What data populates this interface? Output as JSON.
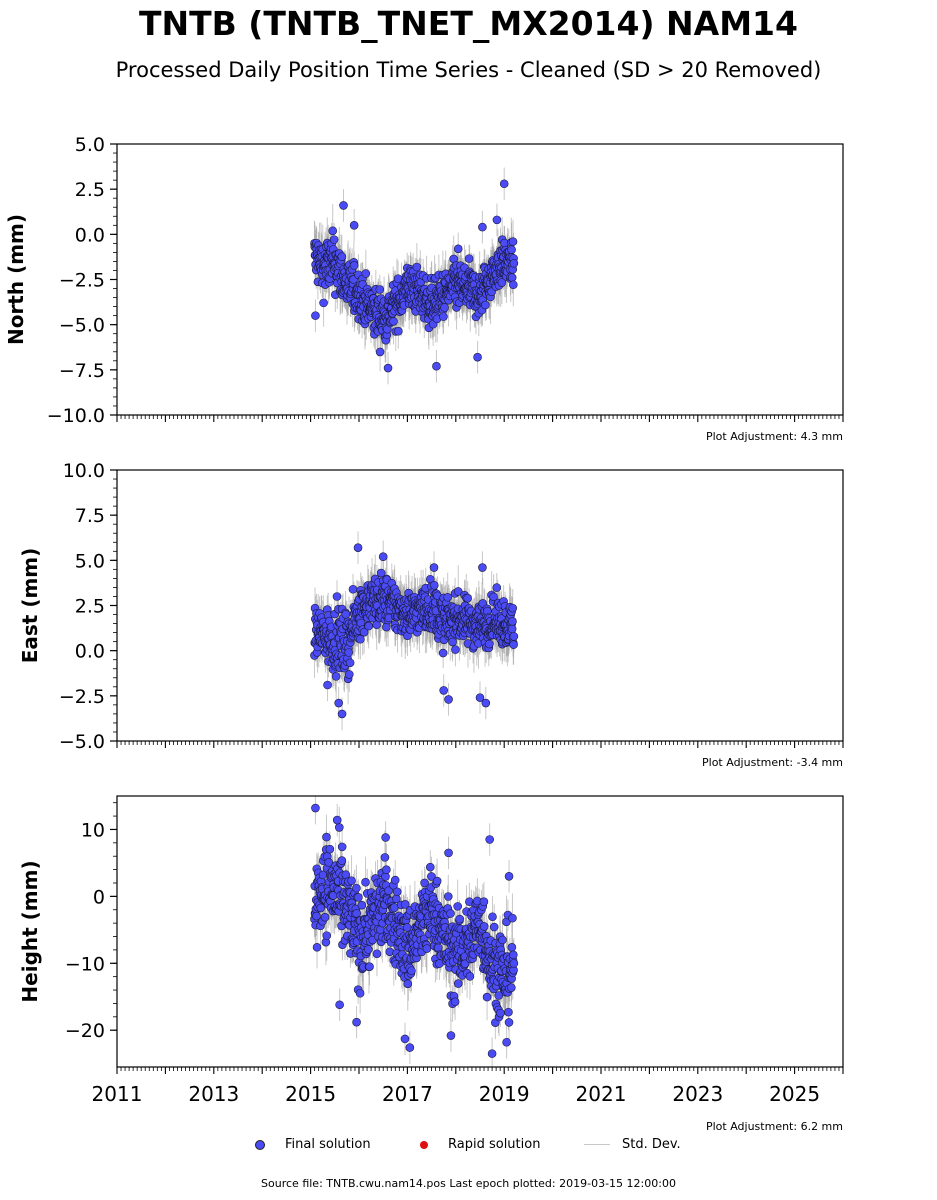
{
  "title": "TNTB (TNTB_TNET_MX2014) NAM14",
  "subtitle": "Processed Daily Position Time Series - Cleaned (SD > 20 Removed)",
  "legend": {
    "final": "Final solution",
    "rapid": "Rapid solution",
    "std": "Std. Dev."
  },
  "source": "Source file: TNTB.cwu.nam14.pos  Last epoch plotted: 2019-03-15 12:00:00",
  "colors": {
    "final": "#4b4bf5",
    "rapid": "#e01010",
    "std": "#c8c8c8"
  },
  "chart_data": [
    {
      "type": "scatter",
      "component": "North",
      "ylabel": "North (mm)",
      "ylim": [
        -10,
        5
      ],
      "yticks": [
        "5.0",
        "2.5",
        "0.0",
        "−2.5",
        "−5.0",
        "−7.5",
        "−10.0"
      ],
      "ytick_values": [
        5,
        2.5,
        0,
        -2.5,
        -5,
        -7.5,
        -10
      ],
      "xlim": [
        2011,
        2026
      ],
      "adjustment": "Plot Adjustment: 4.3 mm",
      "series": [
        {
          "name": "Final solution",
          "x": [
            2015.08,
            2015.25,
            2015.5,
            2015.75,
            2016.0,
            2016.25,
            2016.5,
            2016.75,
            2017.0,
            2017.25,
            2017.5,
            2017.75,
            2018.0,
            2018.25,
            2018.5,
            2018.75,
            2019.0,
            2019.2
          ],
          "y": [
            -1.2,
            -1.8,
            -1.5,
            -2.8,
            -3.3,
            -4.2,
            -4.6,
            -4.0,
            -2.9,
            -3.2,
            -3.9,
            -3.4,
            -2.8,
            -3.0,
            -3.4,
            -2.2,
            -1.5,
            -1.7
          ],
          "spread": [
            1.0,
            1.1,
            1.1,
            1.0,
            0.9,
            1.0,
            1.0,
            0.9,
            0.9,
            0.9,
            0.9,
            0.9,
            0.9,
            0.9,
            0.9,
            0.9,
            0.8,
            0.8
          ],
          "outliers": [
            [
              2015.1,
              -4.5
            ],
            [
              2015.68,
              1.6
            ],
            [
              2015.9,
              0.5
            ],
            [
              2016.6,
              -7.4
            ],
            [
              2017.6,
              -7.3
            ],
            [
              2018.05,
              -0.8
            ],
            [
              2018.45,
              -6.8
            ],
            [
              2018.55,
              0.4
            ],
            [
              2018.85,
              0.8
            ],
            [
              2019.0,
              2.8
            ]
          ]
        }
      ]
    },
    {
      "type": "scatter",
      "component": "East",
      "ylabel": "East (mm)",
      "ylim": [
        -5,
        10
      ],
      "yticks": [
        "10.0",
        "7.5",
        "5.0",
        "2.5",
        "0.0",
        "−2.5",
        "−5.0"
      ],
      "ytick_values": [
        10,
        7.5,
        5,
        2.5,
        0,
        -2.5,
        -5
      ],
      "xlim": [
        2011,
        2026
      ],
      "adjustment": "Plot Adjustment: -3.4 mm",
      "series": [
        {
          "name": "Final solution",
          "x": [
            2015.08,
            2015.25,
            2015.5,
            2015.75,
            2016.0,
            2016.25,
            2016.5,
            2016.75,
            2017.0,
            2017.25,
            2017.5,
            2017.75,
            2018.0,
            2018.25,
            2018.5,
            2018.75,
            2019.0,
            2019.2
          ],
          "y": [
            1.0,
            0.9,
            0.6,
            0.3,
            2.2,
            2.7,
            2.8,
            2.4,
            2.0,
            2.2,
            2.5,
            1.5,
            1.8,
            1.6,
            1.4,
            1.7,
            1.6,
            1.2
          ],
          "spread": [
            1.0,
            1.0,
            1.2,
            1.2,
            1.0,
            1.0,
            1.0,
            1.0,
            0.9,
            0.9,
            1.0,
            1.0,
            0.9,
            0.9,
            0.9,
            0.9,
            0.9,
            0.9
          ],
          "outliers": [
            [
              2015.65,
              -3.5
            ],
            [
              2015.58,
              -2.9
            ],
            [
              2015.98,
              5.7
            ],
            [
              2016.5,
              5.2
            ],
            [
              2017.55,
              4.6
            ],
            [
              2017.75,
              -2.2
            ],
            [
              2017.85,
              -2.7
            ],
            [
              2018.5,
              -2.6
            ],
            [
              2018.62,
              -2.9
            ],
            [
              2018.55,
              4.6
            ],
            [
              2015.35,
              -1.9
            ]
          ]
        }
      ]
    },
    {
      "type": "scatter",
      "component": "Height",
      "ylabel": "Height (mm)",
      "ylim": [
        -25.5,
        15
      ],
      "yticks": [
        "10",
        "0",
        "−10",
        "−20"
      ],
      "ytick_values": [
        10,
        0,
        -10,
        -20
      ],
      "xlim": [
        2011,
        2026
      ],
      "xticks": [
        "2011",
        "2013",
        "2015",
        "2017",
        "2019",
        "2021",
        "2023",
        "2025"
      ],
      "xtick_values": [
        2011,
        2013,
        2015,
        2017,
        2019,
        2021,
        2023,
        2025
      ],
      "adjustment": "Plot Adjustment: 6.2 mm",
      "series": [
        {
          "name": "Final solution",
          "x": [
            2015.08,
            2015.25,
            2015.5,
            2015.75,
            2016.0,
            2016.25,
            2016.5,
            2016.75,
            2017.0,
            2017.25,
            2017.5,
            2017.75,
            2018.0,
            2018.25,
            2018.5,
            2018.75,
            2019.0,
            2019.2
          ],
          "y": [
            -2.0,
            2.0,
            1.0,
            -2.5,
            -6.0,
            -4.0,
            -1.0,
            -4.0,
            -8.0,
            -5.0,
            -2.0,
            -6.0,
            -9.0,
            -7.0,
            -4.0,
            -10.0,
            -12.0,
            -10.0
          ],
          "spread": [
            5.0,
            5.0,
            5.0,
            5.0,
            5.0,
            4.5,
            4.5,
            4.5,
            4.5,
            4.5,
            4.5,
            4.5,
            4.5,
            4.5,
            4.5,
            5.0,
            5.0,
            5.0
          ],
          "outliers": [
            [
              2015.1,
              13.2
            ],
            [
              2015.55,
              11.4
            ],
            [
              2015.6,
              -16.2
            ],
            [
              2015.95,
              -18.8
            ],
            [
              2016.55,
              8.8
            ],
            [
              2016.95,
              -21.3
            ],
            [
              2017.05,
              -22.6
            ],
            [
              2017.85,
              6.5
            ],
            [
              2017.9,
              -20.8
            ],
            [
              2018.7,
              8.5
            ],
            [
              2018.75,
              -23.5
            ],
            [
              2019.05,
              -21.8
            ],
            [
              2019.1,
              3.0
            ]
          ]
        }
      ]
    }
  ]
}
